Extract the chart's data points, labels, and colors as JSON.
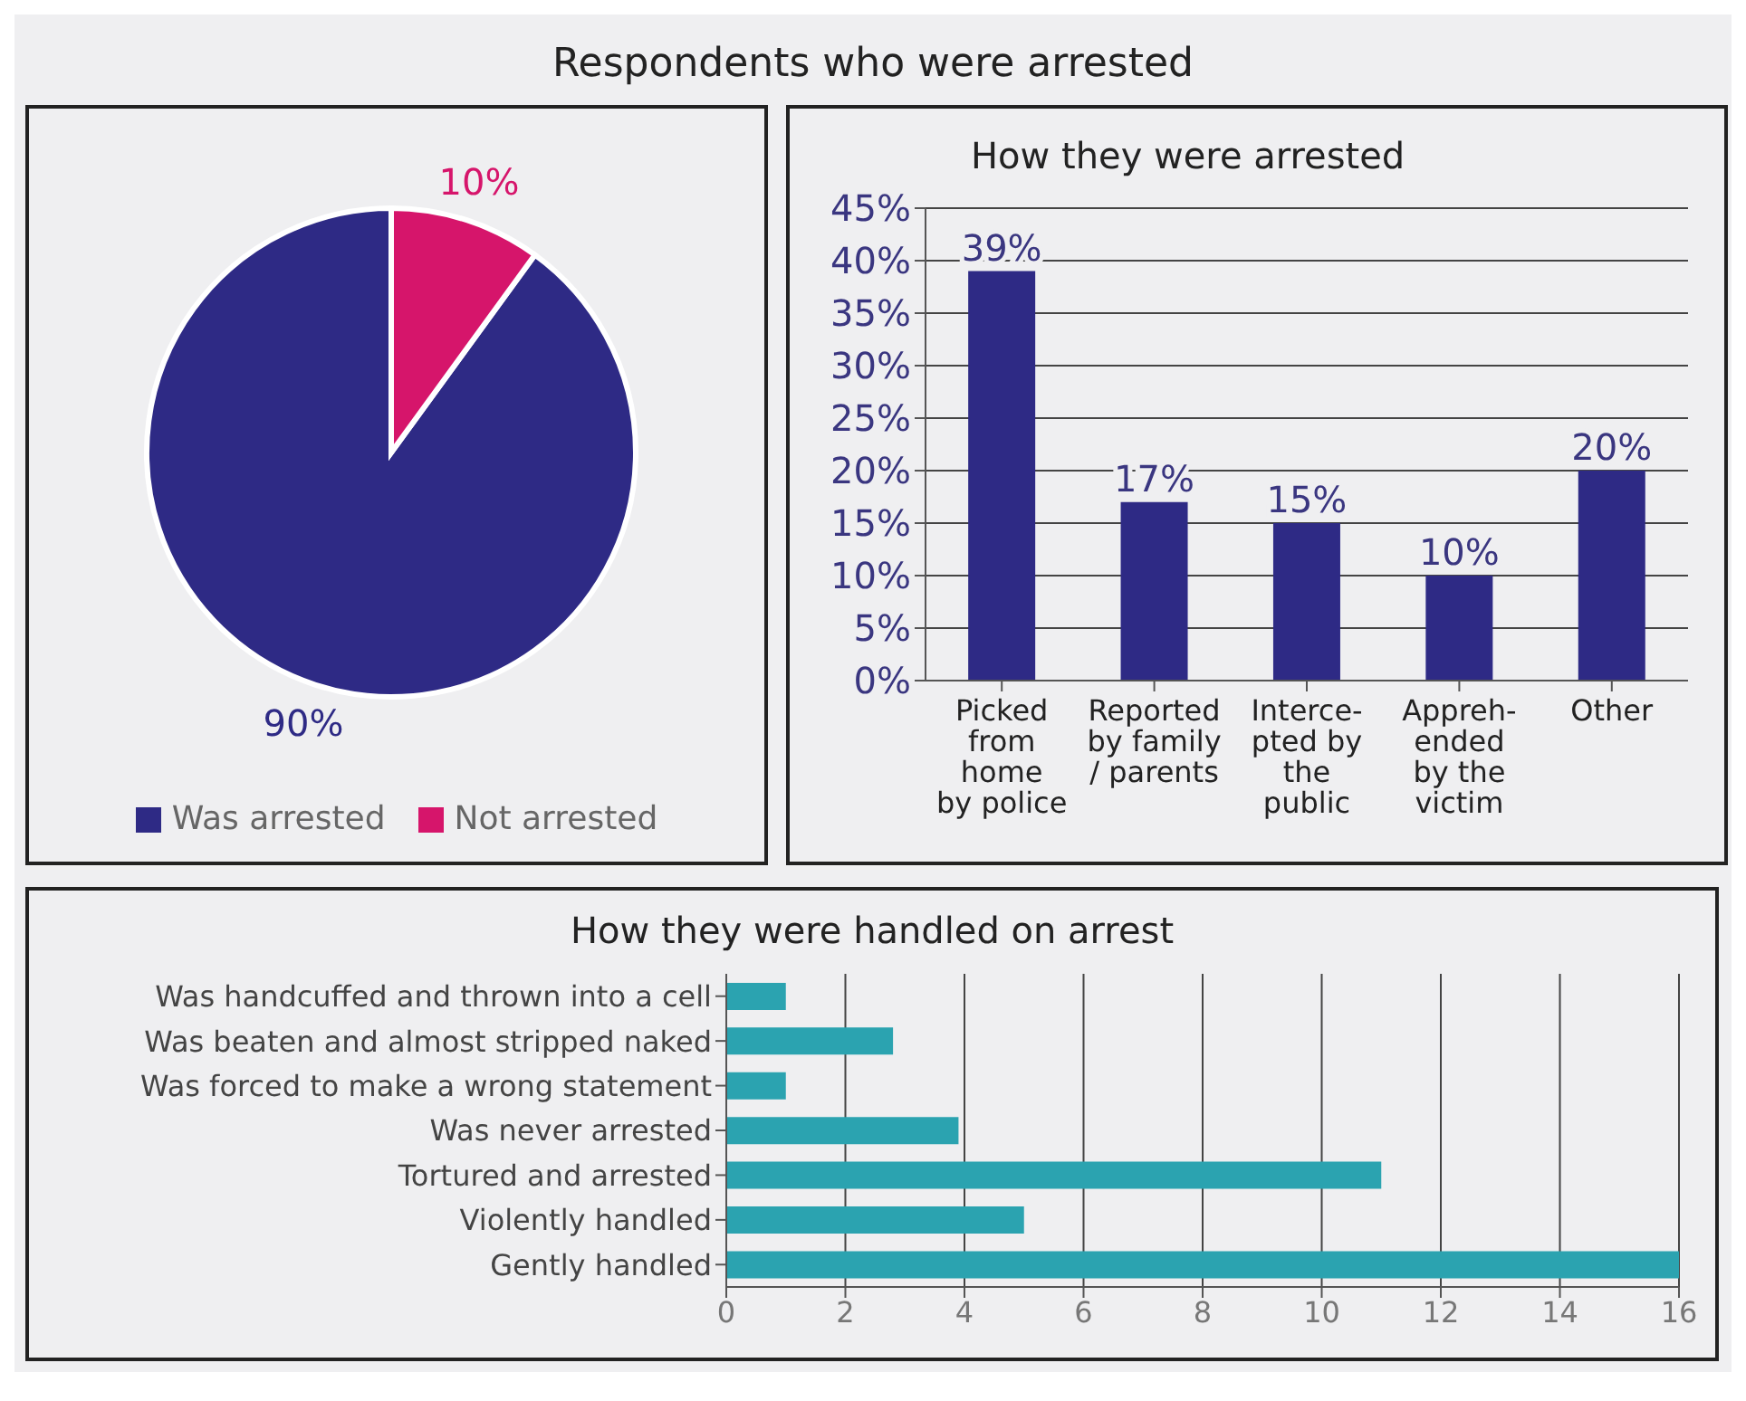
{
  "chart_data": [
    {
      "type": "pie",
      "title": "Respondents who were arrested",
      "categories": [
        "Was arrested",
        "Not arrested"
      ],
      "values": [
        90,
        10
      ],
      "colors": [
        "#2e2a85",
        "#d6156b"
      ],
      "value_labels": [
        "90%",
        "10%"
      ],
      "legend": "bottom"
    },
    {
      "type": "bar",
      "title": "How they were arrested",
      "categories": [
        "Picked\nfrom\nhome\nby police",
        "Reported\nby family\n/ parents",
        "Interce-\npted by\nthe\npublic",
        "Appreh-\nended\nby the\nvictim",
        "Other"
      ],
      "values": [
        39,
        17,
        15,
        10,
        20
      ],
      "color": "#2e2a85",
      "value_labels": [
        "39%",
        "17%",
        "15%",
        "10%",
        "20%"
      ],
      "ylim": [
        0,
        45
      ],
      "yticks": [
        {
          "value": 0,
          "label": "0%"
        },
        {
          "value": 5,
          "label": "5%"
        },
        {
          "value": 10,
          "label": "10%"
        },
        {
          "value": 15,
          "label": "15%"
        },
        {
          "value": 20,
          "label": "20%"
        },
        {
          "value": 25,
          "label": "25%"
        },
        {
          "value": 30,
          "label": "30%"
        },
        {
          "value": 35,
          "label": "35%"
        },
        {
          "value": 40,
          "label": "40%"
        },
        {
          "value": 45,
          "label": "45%"
        }
      ],
      "grid": "y"
    },
    {
      "type": "bar",
      "orientation": "horizontal",
      "title": "How they were handled on arrest",
      "categories": [
        "Was handcuffed and thrown into a cell",
        "Was beaten and almost stripped naked",
        "Was forced to make a wrong statement",
        "Was never arrested",
        "Tortured and arrested",
        "Violently handled",
        "Gently handled"
      ],
      "values": [
        1,
        2.8,
        1,
        3.9,
        11,
        5,
        16
      ],
      "color": "#2ba3b0",
      "xlim": [
        0,
        16
      ],
      "xticks": [
        0,
        2,
        4,
        6,
        8,
        10,
        12,
        14,
        16
      ],
      "grid": "x"
    }
  ]
}
